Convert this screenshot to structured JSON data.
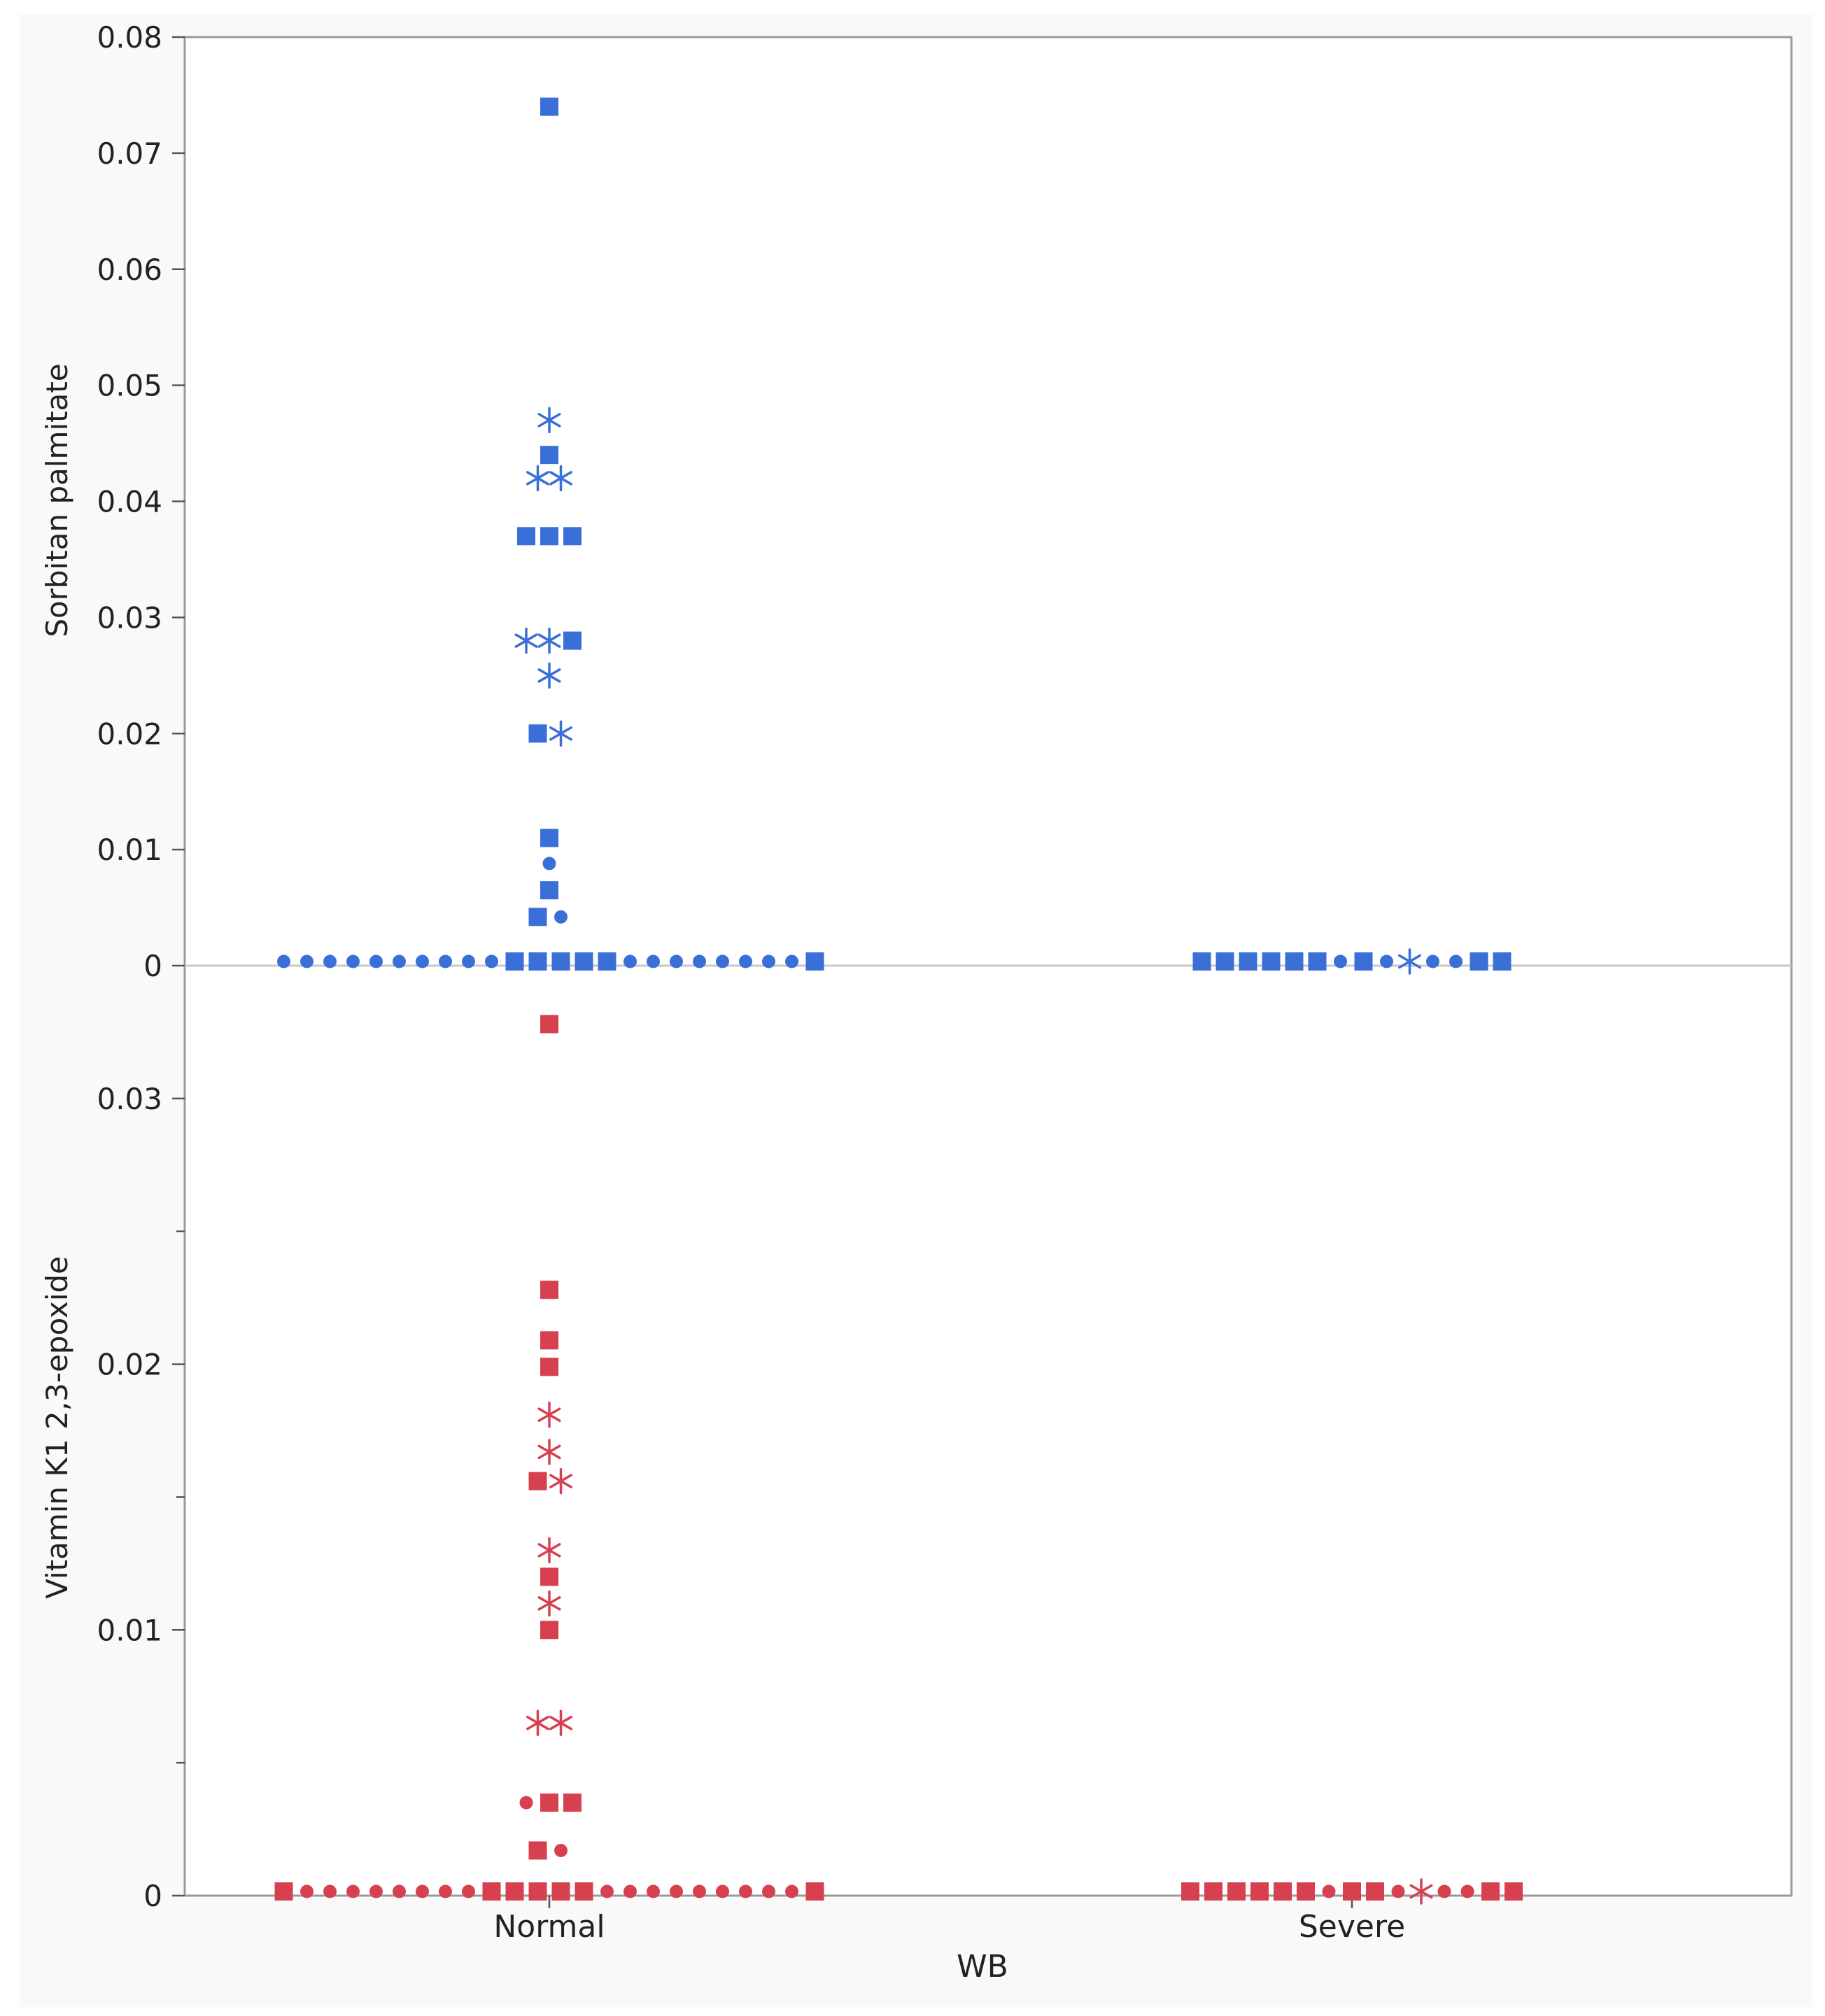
{
  "chart_data": {
    "type": "scatter",
    "xlabel": "WB",
    "categories": [
      "Normal",
      "Severe"
    ],
    "marker_legend": {
      "square": "square",
      "circle": "circle",
      "star": "asterisk"
    },
    "panels": [
      {
        "ylabel": "Sorbitan palmitate",
        "color": "#3a6fd8",
        "ylim": [
          0,
          0.08
        ],
        "yticks": [
          0,
          0.01,
          0.02,
          0.03,
          0.04,
          0.05,
          0.06,
          0.07,
          0.08
        ],
        "ytick_labels": [
          "0",
          "0.01",
          "0.02",
          "0.03",
          "0.04",
          "0.05",
          "0.06",
          "0.07",
          "0.08"
        ],
        "points": [
          {
            "cat": "Normal",
            "y": 0.074,
            "marker": "square"
          },
          {
            "cat": "Normal",
            "y": 0.047,
            "marker": "star"
          },
          {
            "cat": "Normal",
            "y": 0.044,
            "marker": "square"
          },
          {
            "cat": "Normal",
            "y": 0.042,
            "marker": "star"
          },
          {
            "cat": "Normal",
            "y": 0.042,
            "marker": "star"
          },
          {
            "cat": "Normal",
            "y": 0.037,
            "marker": "square"
          },
          {
            "cat": "Normal",
            "y": 0.037,
            "marker": "square"
          },
          {
            "cat": "Normal",
            "y": 0.037,
            "marker": "square"
          },
          {
            "cat": "Normal",
            "y": 0.028,
            "marker": "star"
          },
          {
            "cat": "Normal",
            "y": 0.028,
            "marker": "star"
          },
          {
            "cat": "Normal",
            "y": 0.028,
            "marker": "square"
          },
          {
            "cat": "Normal",
            "y": 0.025,
            "marker": "star"
          },
          {
            "cat": "Normal",
            "y": 0.02,
            "marker": "square"
          },
          {
            "cat": "Normal",
            "y": 0.02,
            "marker": "star"
          },
          {
            "cat": "Normal",
            "y": 0.011,
            "marker": "square"
          },
          {
            "cat": "Normal",
            "y": 0.0088,
            "marker": "circle"
          },
          {
            "cat": "Normal",
            "y": 0.0065,
            "marker": "square"
          },
          {
            "cat": "Normal",
            "y": 0.0042,
            "marker": "square"
          },
          {
            "cat": "Normal",
            "y": 0.0042,
            "marker": "circle"
          }
        ],
        "baseline": [
          {
            "cat": "Normal",
            "y": 0,
            "markers": [
              "circle",
              "circle",
              "circle",
              "circle",
              "circle",
              "circle",
              "circle",
              "circle",
              "circle",
              "circle",
              "square",
              "square",
              "square",
              "square",
              "square",
              "circle",
              "circle",
              "circle",
              "circle",
              "circle",
              "circle",
              "circle",
              "circle",
              "square"
            ]
          },
          {
            "cat": "Severe",
            "y": 0,
            "markers": [
              "square",
              "square",
              "square",
              "square",
              "square",
              "square",
              "circle",
              "square",
              "circle",
              "star",
              "circle",
              "circle",
              "square",
              "square"
            ]
          }
        ]
      },
      {
        "ylabel": "Vitamin K1 2,3-epoxide",
        "color": "#d6404f",
        "ylim": [
          0,
          0.035
        ],
        "yticks": [
          0,
          0.005,
          0.01,
          0.015,
          0.02,
          0.025,
          0.03
        ],
        "ytick_labels": [
          "0",
          "",
          "0.01",
          "",
          "0.02",
          "",
          "0.03"
        ],
        "points": [
          {
            "cat": "Normal",
            "y": 0.0328,
            "marker": "square"
          },
          {
            "cat": "Normal",
            "y": 0.0228,
            "marker": "square"
          },
          {
            "cat": "Normal",
            "y": 0.0209,
            "marker": "square"
          },
          {
            "cat": "Normal",
            "y": 0.0199,
            "marker": "square"
          },
          {
            "cat": "Normal",
            "y": 0.0181,
            "marker": "star"
          },
          {
            "cat": "Normal",
            "y": 0.0167,
            "marker": "star"
          },
          {
            "cat": "Normal",
            "y": 0.0156,
            "marker": "square"
          },
          {
            "cat": "Normal",
            "y": 0.0156,
            "marker": "star"
          },
          {
            "cat": "Normal",
            "y": 0.013,
            "marker": "star"
          },
          {
            "cat": "Normal",
            "y": 0.012,
            "marker": "square"
          },
          {
            "cat": "Normal",
            "y": 0.011,
            "marker": "star"
          },
          {
            "cat": "Normal",
            "y": 0.01,
            "marker": "square"
          },
          {
            "cat": "Normal",
            "y": 0.0065,
            "marker": "star"
          },
          {
            "cat": "Normal",
            "y": 0.0065,
            "marker": "star"
          },
          {
            "cat": "Normal",
            "y": 0.0035,
            "marker": "circle"
          },
          {
            "cat": "Normal",
            "y": 0.0035,
            "marker": "square"
          },
          {
            "cat": "Normal",
            "y": 0.0035,
            "marker": "square"
          },
          {
            "cat": "Normal",
            "y": 0.0017,
            "marker": "square"
          },
          {
            "cat": "Normal",
            "y": 0.0017,
            "marker": "circle"
          }
        ],
        "baseline": [
          {
            "cat": "Normal",
            "y": 0,
            "markers": [
              "square",
              "circle",
              "circle",
              "circle",
              "circle",
              "circle",
              "circle",
              "circle",
              "circle",
              "square",
              "square",
              "square",
              "square",
              "square",
              "circle",
              "circle",
              "circle",
              "circle",
              "circle",
              "circle",
              "circle",
              "circle",
              "circle",
              "square"
            ]
          },
          {
            "cat": "Severe",
            "y": 0,
            "markers": [
              "square",
              "square",
              "square",
              "square",
              "square",
              "square",
              "circle",
              "square",
              "square",
              "circle",
              "star",
              "circle",
              "circle",
              "square",
              "square"
            ]
          }
        ]
      }
    ]
  }
}
